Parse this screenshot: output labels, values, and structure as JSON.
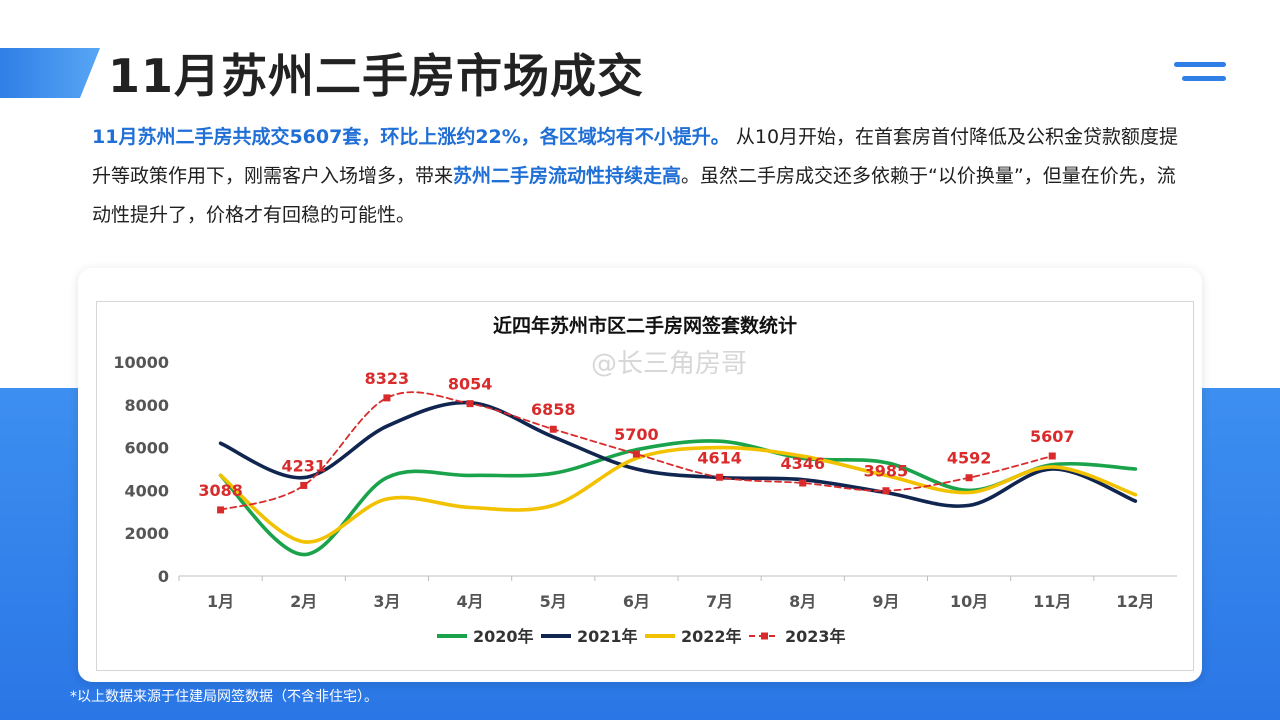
{
  "page": {
    "title": "11月苏州二手房市场成交",
    "para_hl1": "11月苏州二手房共成交5607套，环比上涨约22%，各区域均有不小提升。",
    "para_t1": "从10月开始，在首套房首付降低及公积金贷款额度提升等政策作用下，刚需客户入场增多，带来",
    "para_hl2": "苏州二手房流动性持续走高",
    "para_t2": "。虽然二手房成交还多依赖于“以价换量”，但量在价先，流动性提升了，价格才有回稳的可能性。",
    "footnote": "*以上数据来源于住建局网签数据（不含非住宅）。",
    "watermark": "@长三角房哥",
    "accent_color": "#2f7fe6",
    "highlight_color": "#1f6fd6"
  },
  "chart_data": {
    "type": "line",
    "title": "近四年苏州市区二手房网签套数统计",
    "categories": [
      "1月",
      "2月",
      "3月",
      "4月",
      "5月",
      "6月",
      "7月",
      "8月",
      "9月",
      "10月",
      "11月",
      "12月"
    ],
    "ylim": [
      0,
      10000
    ],
    "yticks": [
      0,
      2000,
      4000,
      6000,
      8000,
      10000
    ],
    "grid": false,
    "legend_position": "bottom",
    "series": [
      {
        "name": "2020年",
        "color": "#1aa34a",
        "dashed": false,
        "values": [
          4700,
          1000,
          4600,
          4700,
          4800,
          5900,
          6300,
          5500,
          5300,
          4000,
          5200,
          5000
        ]
      },
      {
        "name": "2021年",
        "color": "#10254f",
        "dashed": false,
        "values": [
          6200,
          4600,
          7000,
          8100,
          6500,
          5000,
          4600,
          4500,
          3900,
          3300,
          5000,
          3500
        ]
      },
      {
        "name": "2022年",
        "color": "#f2c200",
        "dashed": false,
        "values": [
          4700,
          1600,
          3600,
          3200,
          3300,
          5500,
          6000,
          5600,
          4700,
          3900,
          5100,
          3800
        ]
      },
      {
        "name": "2023年",
        "color": "#d92b2b",
        "dashed": true,
        "values": [
          3088,
          4231,
          8323,
          8054,
          6858,
          5700,
          4614,
          4346,
          3985,
          4592,
          5607,
          null
        ],
        "labels": [
          "3088",
          "4231",
          "8323",
          "8054",
          "6858",
          "5700",
          "4614",
          "4346",
          "3985",
          "4592",
          "5607",
          null
        ]
      }
    ]
  }
}
